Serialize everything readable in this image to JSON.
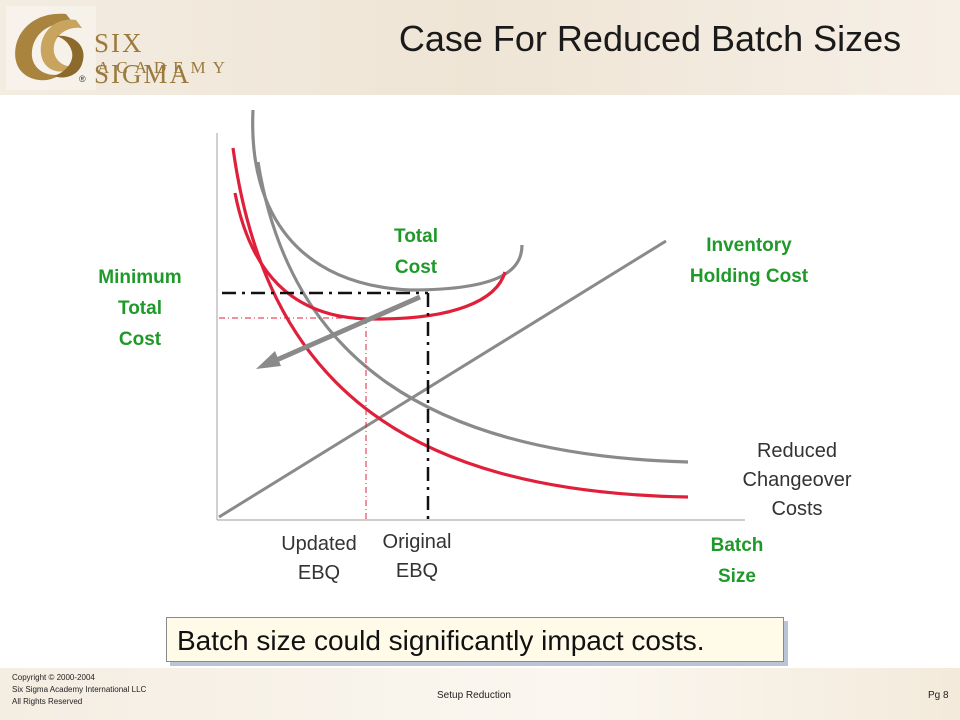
{
  "logo": {
    "line1": "SIX SIGMA",
    "line2": "ACADEMY",
    "registered": "®"
  },
  "title": "Case For Reduced Batch Sizes",
  "diagram": {
    "labels": {
      "minimum_total_cost": [
        "Minimum",
        "Total",
        "Cost"
      ],
      "total_cost": [
        "Total",
        "Cost"
      ],
      "inventory_holding_cost": [
        "Inventory",
        "Holding Cost"
      ],
      "reduced_changeover_costs": [
        "Reduced",
        "Changeover",
        "Costs"
      ],
      "updated_ebq": [
        "Updated",
        "EBQ"
      ],
      "original_ebq": [
        "Original",
        "EBQ"
      ],
      "batch_size": [
        "Batch",
        "Size"
      ]
    },
    "colors": {
      "gray_curve": "#8a8a8a",
      "red_curve": "#e0203a",
      "label_green": "#1f9a2a"
    }
  },
  "callout": "Batch size could significantly impact costs.",
  "footer": {
    "copyright": [
      "Copyright © 2000-2004",
      "Six Sigma Academy International LLC",
      "All Rights Reserved"
    ],
    "center": "Setup Reduction",
    "page": "Pg 8"
  }
}
